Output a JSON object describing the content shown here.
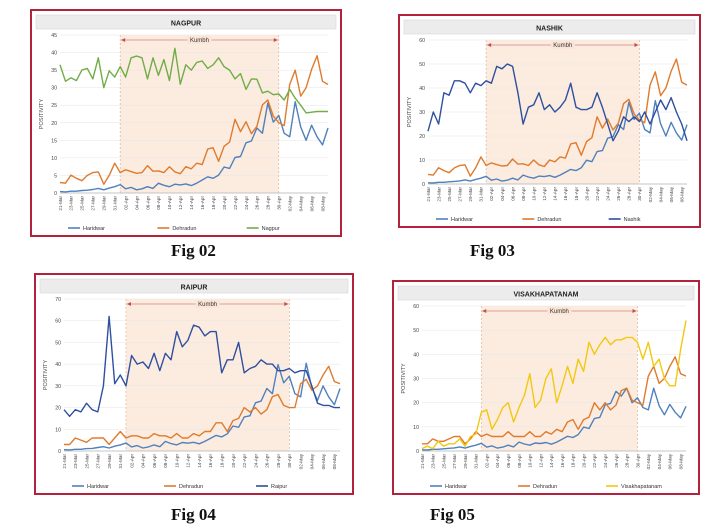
{
  "figures": [
    {
      "caption": "Fig 02"
    },
    {
      "caption": "Fig 03"
    },
    {
      "caption": "Fig 04"
    },
    {
      "caption": "Fig 05"
    }
  ],
  "chart_data": [
    {
      "type": "line",
      "title": "NAGPUR",
      "ylabel": "POSITIVITY",
      "xlabel": "",
      "ylim": [
        0,
        45
      ],
      "yticks": [
        0,
        5,
        10,
        15,
        20,
        25,
        30,
        35,
        40,
        45
      ],
      "x": [
        "21-Mar",
        "22-Mar",
        "23-Mar",
        "24-Mar",
        "25-Mar",
        "26-Mar",
        "27-Mar",
        "28-Mar",
        "29-Mar",
        "30-Mar",
        "31-Mar",
        "01-Apr",
        "02-Apr",
        "03-Apr",
        "04-Apr",
        "05-Apr",
        "06-Apr",
        "07-Apr",
        "08-Apr",
        "09-Apr",
        "10-Apr",
        "11-Apr",
        "12-Apr",
        "13-Apr",
        "14-Apr",
        "15-Apr",
        "16-Apr",
        "17-Apr",
        "18-Apr",
        "19-Apr",
        "20-Apr",
        "21-Apr",
        "22-Apr",
        "23-Apr",
        "24-Apr",
        "25-Apr",
        "26-Apr",
        "27-Apr",
        "28-Apr",
        "29-Apr",
        "30-Apr",
        "01-May",
        "02-May",
        "03-May",
        "04-May",
        "05-May",
        "06-May",
        "07-May",
        "08-May",
        "09-May"
      ],
      "xtick_labels": [
        "21-Mar",
        "23-Mar",
        "25-Mar",
        "27-Mar",
        "29-Mar",
        "31-Mar",
        "02-Apr",
        "04-Apr",
        "06-Apr",
        "08-Apr",
        "10-Apr",
        "12-Apr",
        "14-Apr",
        "16-Apr",
        "18-Apr",
        "20-Apr",
        "22-Apr",
        "24-Apr",
        "26-Apr",
        "28-Apr",
        "30-Apr",
        "02-May",
        "04-May",
        "06-May",
        "08-May"
      ],
      "shaded_range": [
        "01-Apr",
        "30-Apr"
      ],
      "annotation": "Kumbh",
      "legend_position": "bottom",
      "grid": true,
      "colors": {
        "Haridwar": "#4f81bd",
        "Dehradun": "#e07b2e",
        "Nagpur": "#70ad47"
      },
      "series": [
        {
          "name": "Haridwar",
          "values": [
            0.4,
            0.3,
            0.5,
            0.5,
            0.7,
            0.8,
            1.0,
            1.3,
            0.9,
            1.4,
            1.8,
            2.4,
            1.2,
            1.6,
            0.9,
            1.2,
            1.8,
            1.3,
            2.8,
            2.2,
            1.8,
            2.5,
            2.3,
            2.6,
            2.1,
            2.8,
            3.7,
            4.6,
            4.2,
            5.1,
            7.4,
            7.0,
            10.1,
            10.4,
            14.3,
            14.8,
            18.5,
            17.0,
            25.6,
            20.2,
            22.1,
            17.0,
            16.0,
            26.0,
            18.8,
            15.0,
            19.3,
            16.0,
            13.7,
            18.5
          ]
        },
        {
          "name": "Dehradun",
          "values": [
            3.0,
            2.8,
            5.1,
            4.2,
            3.5,
            5.0,
            5.8,
            6.0,
            2.5,
            5.0,
            8.5,
            5.8,
            6.6,
            6.1,
            5.6,
            5.8,
            7.8,
            6.2,
            6.3,
            5.8,
            7.5,
            6.0,
            5.5,
            7.5,
            6.9,
            8.5,
            8.1,
            12.5,
            12.9,
            9.0,
            13.3,
            14.5,
            21.0,
            17.5,
            20.3,
            16.9,
            19.0,
            25.1,
            26.5,
            21.9,
            20.0,
            19.2,
            30.9,
            35.0,
            27.6,
            30.0,
            35.2,
            39.1,
            31.8,
            30.9
          ]
        },
        {
          "name": "Nagpur",
          "values": [
            36.5,
            31.8,
            32.8,
            32.0,
            35.0,
            35.5,
            32.5,
            38.5,
            30.0,
            34.8,
            33.0,
            36.0,
            33.0,
            38.5,
            39.0,
            38.5,
            32.5,
            38.5,
            33.5,
            38.0,
            32.0,
            41.2,
            31.0,
            36.5,
            35.0,
            37.2,
            37.6,
            35.5,
            36.5,
            38.5,
            36.0,
            35.0,
            32.5,
            34.0,
            29.5,
            32.5,
            32.4,
            28.5,
            29.0,
            28.0,
            28.2,
            26.5,
            29.5,
            27.0,
            25.0,
            22.8,
            23.0,
            23.2,
            23.2,
            23.2
          ]
        }
      ]
    },
    {
      "type": "line",
      "title": "NASHIK",
      "ylabel": "POSITIVITY",
      "xlabel": "",
      "ylim": [
        0,
        60
      ],
      "yticks": [
        0,
        10,
        20,
        30,
        40,
        50,
        60
      ],
      "x": [
        "21-Mar",
        "22-Mar",
        "23-Mar",
        "24-Mar",
        "25-Mar",
        "26-Mar",
        "27-Mar",
        "28-Mar",
        "29-Mar",
        "30-Mar",
        "31-Mar",
        "01-Apr",
        "02-Apr",
        "03-Apr",
        "04-Apr",
        "05-Apr",
        "06-Apr",
        "07-Apr",
        "08-Apr",
        "09-Apr",
        "10-Apr",
        "11-Apr",
        "12-Apr",
        "13-Apr",
        "14-Apr",
        "15-Apr",
        "16-Apr",
        "17-Apr",
        "18-Apr",
        "19-Apr",
        "20-Apr",
        "21-Apr",
        "22-Apr",
        "23-Apr",
        "24-Apr",
        "25-Apr",
        "26-Apr",
        "27-Apr",
        "28-Apr",
        "29-Apr",
        "30-Apr",
        "01-May",
        "02-May",
        "03-May",
        "04-May",
        "05-May",
        "06-May",
        "07-May",
        "08-May",
        "09-May"
      ],
      "xtick_labels": [
        "21-Mar",
        "23-Mar",
        "25-Mar",
        "27-Mar",
        "29-Mar",
        "31-Mar",
        "02-Apr",
        "04-Apr",
        "06-Apr",
        "08-Apr",
        "10-Apr",
        "12-Apr",
        "14-Apr",
        "16-Apr",
        "18-Apr",
        "20-Apr",
        "22-Apr",
        "24-Apr",
        "26-Apr",
        "28-Apr",
        "30-Apr",
        "02-May",
        "04-May",
        "06-May",
        "08-May"
      ],
      "shaded_range": [
        "01-Apr",
        "30-Apr"
      ],
      "annotation": "Kumbh",
      "legend_position": "bottom",
      "grid": true,
      "colors": {
        "Haridwar": "#4f81bd",
        "Dehradun": "#e07b2e",
        "Nashik": "#2f4f9f"
      },
      "series": [
        {
          "name": "Haridwar",
          "values": [
            0.5,
            0.4,
            0.7,
            0.7,
            0.9,
            1.1,
            1.3,
            1.7,
            1.2,
            1.9,
            2.4,
            3.2,
            1.6,
            2.1,
            1.2,
            1.6,
            2.4,
            1.7,
            3.7,
            2.9,
            2.4,
            3.3,
            3.1,
            3.5,
            2.8,
            3.7,
            4.9,
            6.1,
            5.6,
            6.8,
            9.9,
            9.3,
            13.5,
            13.9,
            19.1,
            19.7,
            24.7,
            22.7,
            34.1,
            26.9,
            29.5,
            22.7,
            21.3,
            34.7,
            25.1,
            20.0,
            25.7,
            21.3,
            18.3,
            24.7
          ]
        },
        {
          "name": "Dehradun",
          "values": [
            4.0,
            3.7,
            6.8,
            5.6,
            4.7,
            6.7,
            7.7,
            8.0,
            3.3,
            6.7,
            11.3,
            7.7,
            8.8,
            8.1,
            7.5,
            7.7,
            10.4,
            8.3,
            8.4,
            7.7,
            10.0,
            8.0,
            7.3,
            10.0,
            9.2,
            11.3,
            10.8,
            16.7,
            17.2,
            12.0,
            17.7,
            19.3,
            28.0,
            23.3,
            27.1,
            22.5,
            25.3,
            33.5,
            35.3,
            29.2,
            26.7,
            25.6,
            41.2,
            46.7,
            36.8,
            40.0,
            46.9,
            52.1,
            42.4,
            41.2
          ]
        },
        {
          "name": "Nashik",
          "values": [
            22,
            30,
            25,
            38,
            37,
            43,
            43,
            42,
            38,
            42,
            41,
            43,
            42,
            49,
            48,
            50,
            49,
            38,
            25,
            32,
            33,
            38,
            31,
            33,
            30,
            32,
            35,
            42,
            32,
            31,
            31,
            32,
            38,
            32,
            25,
            18,
            22,
            28,
            26,
            28,
            26,
            30,
            25,
            30,
            35,
            31,
            36,
            30,
            25,
            18
          ]
        }
      ]
    },
    {
      "type": "line",
      "title": "RAIPUR",
      "ylabel": "POSITIVITY",
      "xlabel": "",
      "ylim": [
        0,
        70
      ],
      "yticks": [
        0,
        10,
        20,
        30,
        40,
        50,
        60,
        70
      ],
      "x": [
        "21-Mar",
        "22-Mar",
        "23-Mar",
        "24-Mar",
        "25-Mar",
        "26-Mar",
        "27-Mar",
        "28-Mar",
        "29-Mar",
        "30-Mar",
        "31-Mar",
        "01-Apr",
        "02-Apr",
        "03-Apr",
        "04-Apr",
        "05-Apr",
        "06-Apr",
        "07-Apr",
        "08-Apr",
        "09-Apr",
        "10-Apr",
        "11-Apr",
        "12-Apr",
        "13-Apr",
        "14-Apr",
        "15-Apr",
        "16-Apr",
        "17-Apr",
        "18-Apr",
        "19-Apr",
        "20-Apr",
        "21-Apr",
        "22-Apr",
        "23-Apr",
        "24-Apr",
        "25-Apr",
        "26-Apr",
        "27-Apr",
        "28-Apr",
        "29-Apr",
        "30-Apr",
        "01-May",
        "02-May",
        "03-May",
        "04-May",
        "05-May",
        "06-May",
        "07-May",
        "08-May",
        "09-May"
      ],
      "xtick_labels": [
        "21-Mar",
        "23-Mar",
        "25-Mar",
        "27-Mar",
        "29-Mar",
        "31-Mar",
        "02-Apr",
        "04-Apr",
        "06-Apr",
        "08-Apr",
        "10-Apr",
        "12-Apr",
        "14-Apr",
        "16-Apr",
        "18-Apr",
        "20-Apr",
        "22-Apr",
        "24-Apr",
        "26-Apr",
        "28-Apr",
        "30-Apr",
        "02-May",
        "04-May",
        "06-May",
        "08-May"
      ],
      "shaded_range": [
        "01-Apr",
        "30-Apr"
      ],
      "annotation": "Kumbh",
      "legend_position": "bottom",
      "grid": true,
      "colors": {
        "Haridwar": "#4f81bd",
        "Dehradun": "#e07b2e",
        "Raipur": "#2f4f9f"
      },
      "series": [
        {
          "name": "Haridwar",
          "values": [
            0.6,
            0.5,
            0.8,
            0.8,
            1.1,
            1.2,
            1.6,
            2.0,
            1.4,
            2.2,
            2.8,
            3.7,
            1.9,
            2.5,
            1.4,
            1.9,
            2.8,
            2.0,
            4.4,
            3.4,
            2.8,
            3.9,
            3.6,
            4.0,
            3.3,
            4.4,
            5.8,
            7.2,
            6.5,
            7.9,
            11.5,
            10.9,
            15.7,
            16.2,
            22.2,
            23.0,
            28.8,
            26.4,
            39.8,
            31.4,
            34.4,
            26.4,
            24.9,
            40.4,
            29.2,
            23.3,
            30.0,
            24.9,
            21.3,
            28.8
          ]
        },
        {
          "name": "Dehradun",
          "values": [
            3,
            3,
            6,
            5,
            4,
            6,
            6,
            6,
            3,
            6,
            9,
            6,
            7,
            7,
            6,
            6,
            8,
            7,
            7,
            6,
            8,
            6,
            6,
            8,
            7,
            9,
            9,
            13,
            13,
            9,
            14,
            15,
            20,
            18,
            20,
            17,
            19,
            25,
            26,
            21,
            20,
            20,
            31,
            33,
            28,
            30,
            35,
            39,
            32,
            31
          ]
        },
        {
          "name": "Raipur",
          "values": [
            19,
            16,
            19,
            18,
            22,
            19,
            18,
            30,
            62,
            31,
            35,
            30,
            44,
            40,
            41,
            38,
            45,
            37,
            45,
            42,
            55,
            48,
            51,
            58,
            57,
            53,
            55,
            55,
            36,
            42,
            42,
            50,
            36,
            38,
            39,
            42,
            40,
            40,
            37,
            37,
            38,
            36,
            37,
            37,
            30,
            22,
            21,
            21,
            20,
            20
          ]
        }
      ]
    },
    {
      "type": "line",
      "title": "VISAKHAPATANAM",
      "ylabel": "POSITIVITY",
      "xlabel": "",
      "ylim": [
        0,
        60
      ],
      "yticks": [
        0,
        10,
        20,
        30,
        40,
        50,
        60
      ],
      "x": [
        "21-Mar",
        "22-Mar",
        "23-Mar",
        "24-Mar",
        "25-Mar",
        "26-Mar",
        "27-Mar",
        "28-Mar",
        "29-Mar",
        "30-Mar",
        "31-Mar",
        "01-Apr",
        "02-Apr",
        "03-Apr",
        "04-Apr",
        "05-Apr",
        "06-Apr",
        "07-Apr",
        "08-Apr",
        "09-Apr",
        "10-Apr",
        "11-Apr",
        "12-Apr",
        "13-Apr",
        "14-Apr",
        "15-Apr",
        "16-Apr",
        "17-Apr",
        "18-Apr",
        "19-Apr",
        "20-Apr",
        "21-Apr",
        "22-Apr",
        "23-Apr",
        "24-Apr",
        "25-Apr",
        "26-Apr",
        "27-Apr",
        "28-Apr",
        "29-Apr",
        "30-Apr",
        "01-May",
        "02-May",
        "03-May",
        "04-May",
        "05-May",
        "06-May",
        "07-May",
        "08-May",
        "09-May"
      ],
      "xtick_labels": [
        "21-Mar",
        "23-Mar",
        "25-Mar",
        "27-Mar",
        "29-Mar",
        "31-Mar",
        "02-Apr",
        "04-Apr",
        "06-Apr",
        "08-Apr",
        "10-Apr",
        "12-Apr",
        "14-Apr",
        "16-Apr",
        "18-Apr",
        "20-Apr",
        "22-Apr",
        "24-Apr",
        "26-Apr",
        "28-Apr",
        "30-Apr",
        "02-May",
        "04-May",
        "06-May",
        "08-May"
      ],
      "shaded_range": [
        "01-Apr",
        "30-Apr"
      ],
      "annotation": "Kumbh",
      "legend_position": "bottom",
      "grid": true,
      "colors": {
        "Haridwar": "#4f81bd",
        "Dehradun": "#e07b2e",
        "Visakhapatanam": "#f2c811"
      },
      "series": [
        {
          "name": "Haridwar",
          "values": [
            0.5,
            0.4,
            0.7,
            0.7,
            0.9,
            1.1,
            1.3,
            1.7,
            1.2,
            1.9,
            2.4,
            3.2,
            1.6,
            2.1,
            1.2,
            1.6,
            2.4,
            1.7,
            3.7,
            2.9,
            2.4,
            3.3,
            3.1,
            3.5,
            2.8,
            3.7,
            4.9,
            6.1,
            5.6,
            6.8,
            9.9,
            9.3,
            13.5,
            13.9,
            19.1,
            19.7,
            24.7,
            22.7,
            26.0,
            20.0,
            22.0,
            18.0,
            17.0,
            26.0,
            18.8,
            15.0,
            19.3,
            16.0,
            13.7,
            18.5
          ]
        },
        {
          "name": "Dehradun",
          "values": [
            3,
            3,
            5,
            4,
            4,
            5,
            6,
            6,
            3,
            5,
            8,
            6,
            7,
            6,
            6,
            6,
            8,
            6,
            6,
            6,
            8,
            6,
            6,
            8,
            7,
            9,
            8,
            12,
            13,
            9,
            13,
            14,
            20,
            17,
            20,
            17,
            19,
            25,
            26,
            21,
            20,
            19,
            31,
            35,
            28,
            30,
            35,
            39,
            32,
            31
          ]
        },
        {
          "name": "Visakhapatanam",
          "values": [
            1,
            2,
            1,
            4,
            2,
            3,
            3,
            5,
            2,
            6,
            7,
            16,
            17,
            9,
            13,
            18,
            20,
            12,
            18,
            23,
            32,
            18,
            21,
            30,
            34,
            20,
            27,
            35,
            28,
            38,
            33,
            45,
            40,
            44,
            47,
            44,
            46,
            46,
            47,
            47,
            45,
            38,
            45,
            35,
            38,
            30,
            27,
            27,
            42,
            54
          ]
        }
      ]
    }
  ]
}
